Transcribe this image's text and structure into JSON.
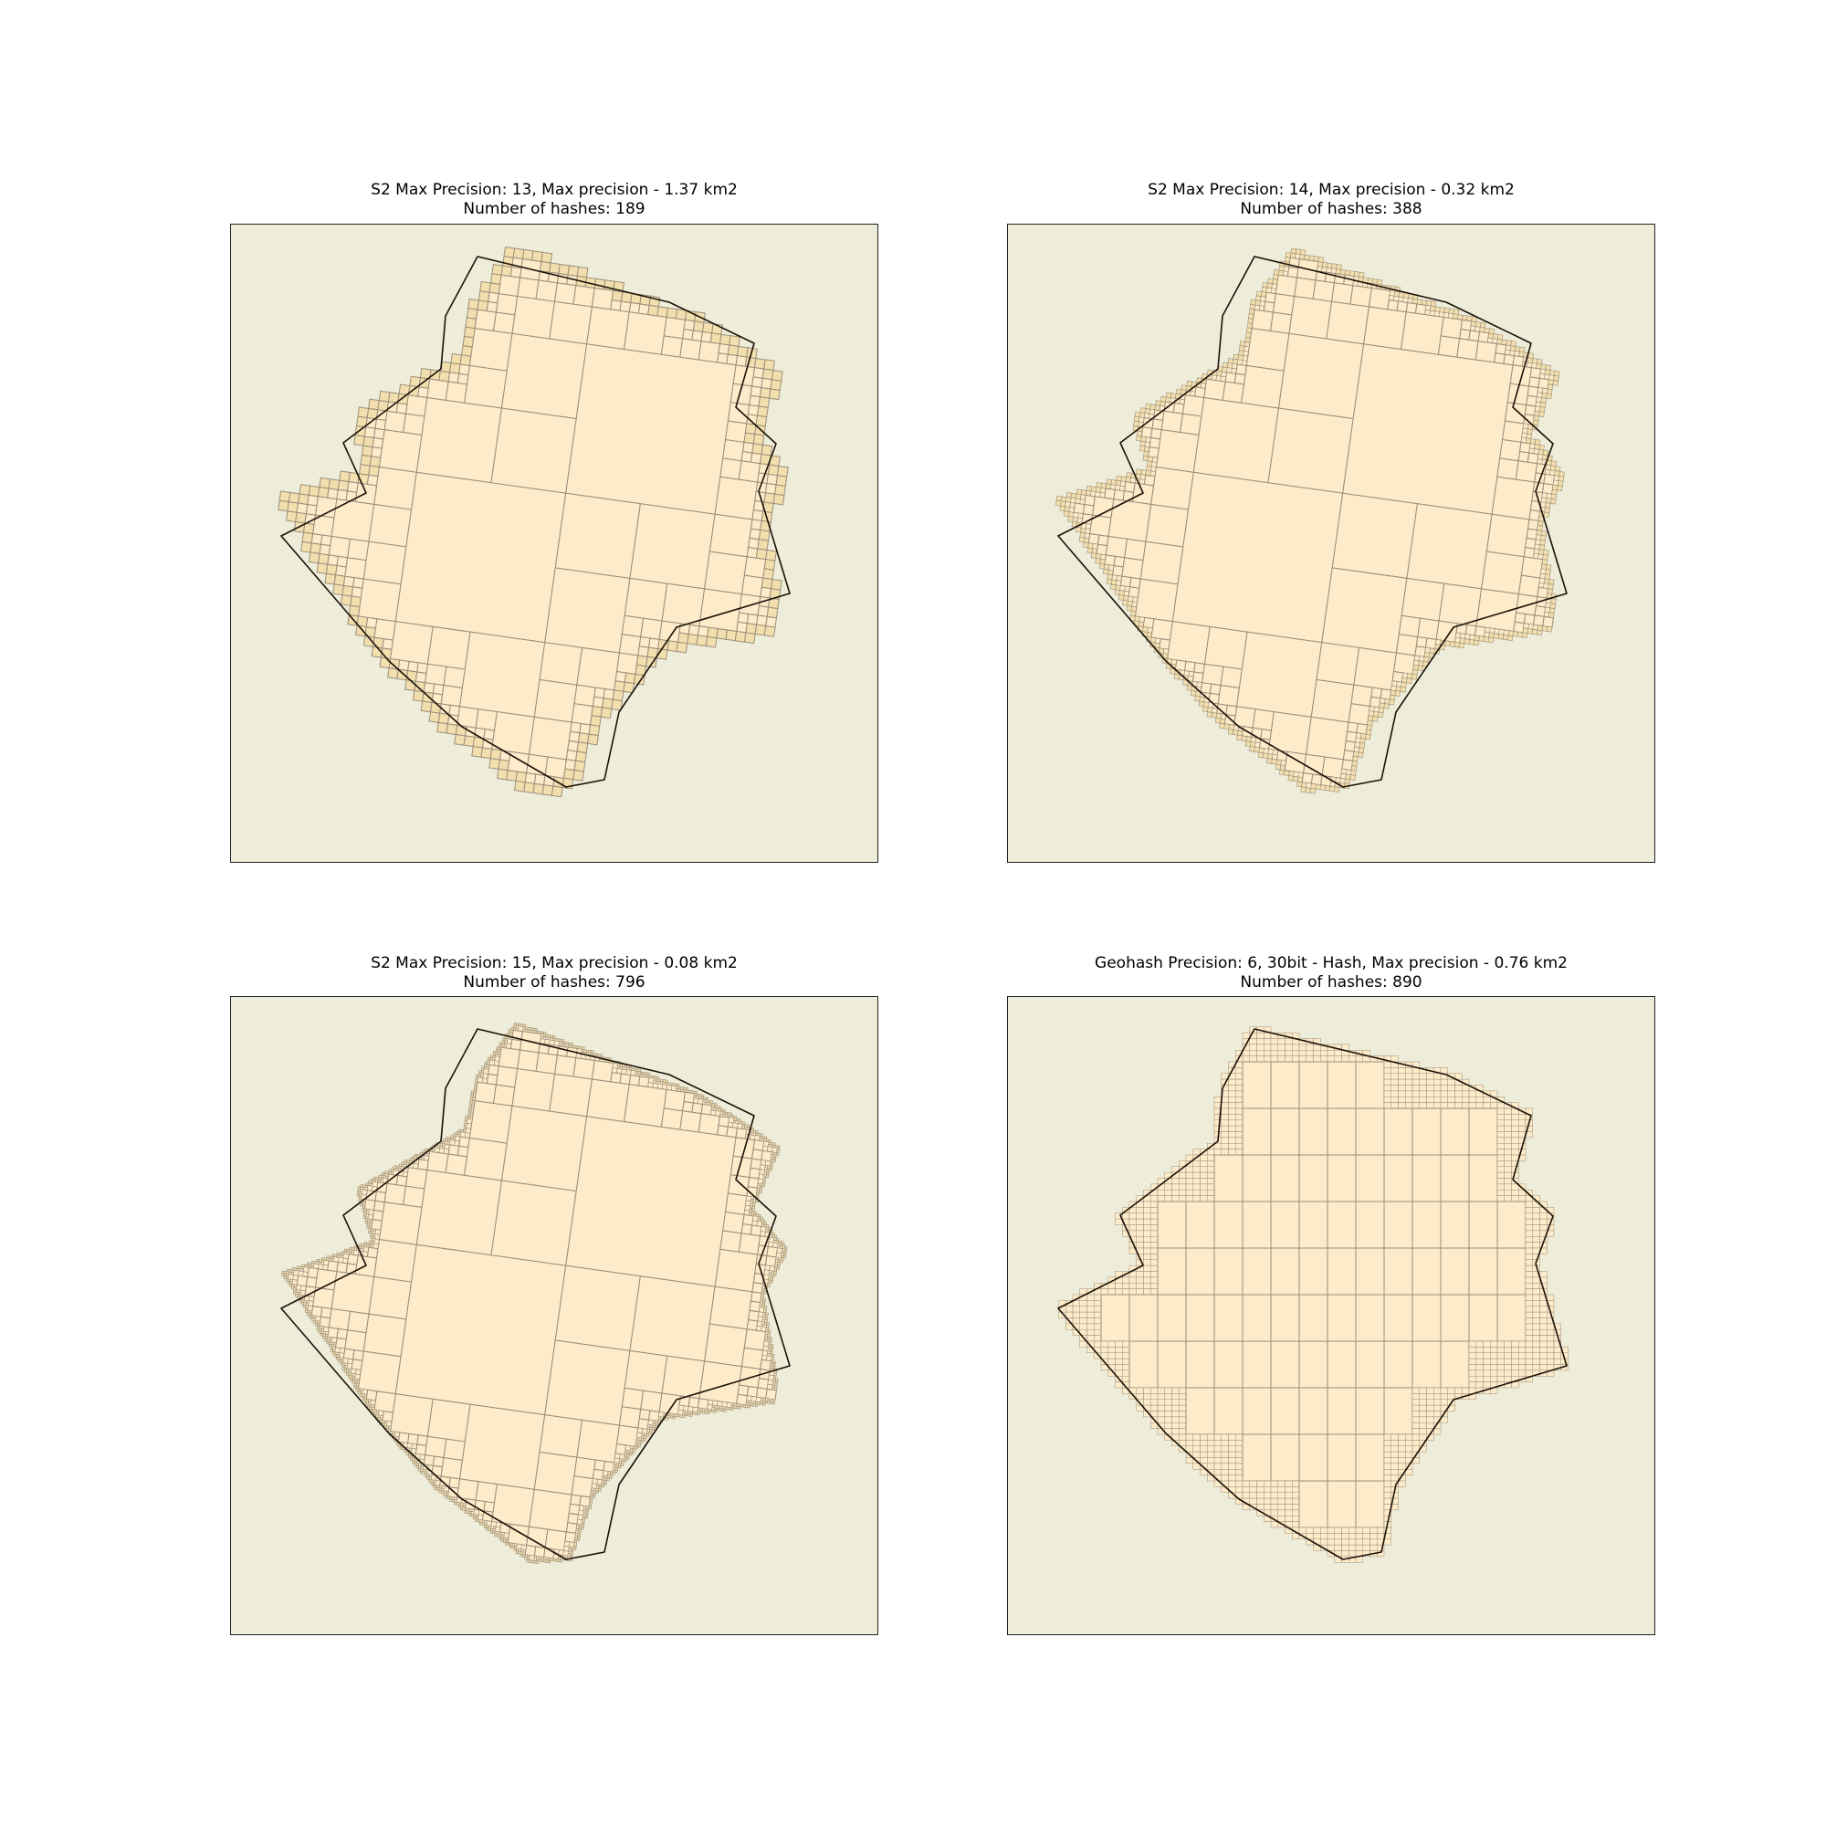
{
  "panels": [
    {
      "title_line1": "S2 Max Precision: 13, Max precision - 1.37 km2",
      "title_line2": "Number of hashes: 189",
      "grid": "s2",
      "level": 13
    },
    {
      "title_line1": "S2 Max Precision: 14, Max precision - 0.32 km2",
      "title_line2": "Number of hashes: 388",
      "grid": "s2",
      "level": 14
    },
    {
      "title_line1": "S2 Max Precision: 15,  Max precision - 0.08 km2",
      "title_line2": "Number of hashes: 796",
      "grid": "s2",
      "level": 15
    },
    {
      "title_line1": "Geohash Precision: 6, 30bit - Hash, Max precision - 0.76 km2",
      "title_line2": "Number of hashes: 890",
      "grid": "geohash",
      "level": 6
    }
  ],
  "colors": {
    "background": "#eeedda",
    "cell_fill": "#fdebc9",
    "edge_cell_fill": "#f3dfae",
    "cell_line": "#9a8f7c",
    "polygon_line": "#1a1208"
  }
}
